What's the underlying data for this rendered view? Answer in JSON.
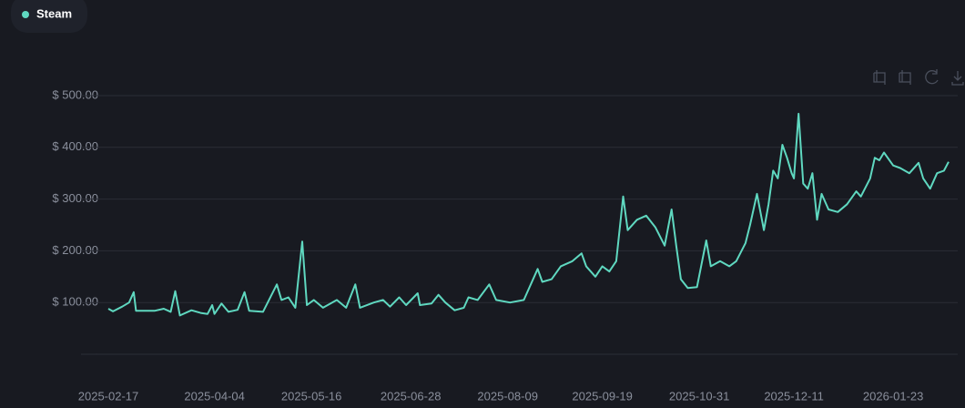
{
  "chart_data": {
    "type": "line",
    "x": [
      "2025-02-17",
      "2025-02-19",
      "2025-02-23",
      "2025-02-26",
      "2025-02-28",
      "2025-03-01",
      "2025-03-09",
      "2025-03-13",
      "2025-03-16",
      "2025-03-18",
      "2025-03-20",
      "2025-03-25",
      "2025-03-29",
      "2025-04-01",
      "2025-04-03",
      "2025-04-04",
      "2025-04-07",
      "2025-04-10",
      "2025-04-14",
      "2025-04-17",
      "2025-04-19",
      "2025-04-25",
      "2025-05-01",
      "2025-05-03",
      "2025-05-06",
      "2025-05-09",
      "2025-05-12",
      "2025-05-14",
      "2025-05-17",
      "2025-05-21",
      "2025-05-27",
      "2025-05-31",
      "2025-06-04",
      "2025-06-06",
      "2025-06-12",
      "2025-06-16",
      "2025-06-19",
      "2025-06-23",
      "2025-06-26",
      "2025-07-01",
      "2025-07-02",
      "2025-07-07",
      "2025-07-10",
      "2025-07-13",
      "2025-07-17",
      "2025-07-21",
      "2025-07-23",
      "2025-07-27",
      "2025-08-01",
      "2025-08-04",
      "2025-08-10",
      "2025-08-16",
      "2025-08-22",
      "2025-08-24",
      "2025-08-28",
      "2025-09-01",
      "2025-09-06",
      "2025-09-10",
      "2025-09-12",
      "2025-09-16",
      "2025-09-19",
      "2025-09-22",
      "2025-09-25",
      "2025-09-28",
      "2025-09-30",
      "2025-10-04",
      "2025-10-08",
      "2025-10-12",
      "2025-10-16",
      "2025-10-19",
      "2025-10-21",
      "2025-10-23",
      "2025-10-26",
      "2025-10-30",
      "2025-11-01",
      "2025-11-03",
      "2025-11-05",
      "2025-11-09",
      "2025-11-13",
      "2025-11-16",
      "2025-11-20",
      "2025-11-22",
      "2025-11-25",
      "2025-11-28",
      "2025-11-30",
      "2025-12-02",
      "2025-12-04",
      "2025-12-06",
      "2025-12-08",
      "2025-12-10",
      "2025-12-11",
      "2025-12-13",
      "2025-12-15",
      "2025-12-17",
      "2025-12-19",
      "2025-12-21",
      "2025-12-23",
      "2025-12-26",
      "2025-12-30",
      "2026-01-03",
      "2026-01-07",
      "2026-01-09",
      "2026-01-13",
      "2026-01-15",
      "2026-01-17",
      "2026-01-19",
      "2026-01-23",
      "2026-01-26",
      "2026-01-30",
      "2026-02-03",
      "2026-02-05",
      "2026-02-08",
      "2026-02-11",
      "2026-02-14",
      "2026-02-16"
    ],
    "series": [
      {
        "name": "Steam",
        "color": "#5fd8c0",
        "values": [
          88,
          83,
          92,
          100,
          120,
          84,
          84,
          88,
          82,
          122,
          75,
          85,
          80,
          78,
          95,
          78,
          98,
          82,
          86,
          120,
          84,
          82,
          135,
          105,
          110,
          90,
          218,
          95,
          105,
          90,
          105,
          90,
          135,
          90,
          100,
          105,
          92,
          110,
          95,
          118,
          95,
          98,
          115,
          100,
          85,
          90,
          110,
          105,
          135,
          105,
          100,
          105,
          165,
          140,
          145,
          170,
          180,
          195,
          170,
          150,
          170,
          160,
          180,
          305,
          240,
          260,
          268,
          245,
          210,
          280,
          210,
          145,
          128,
          130,
          175,
          220,
          170,
          180,
          170,
          180,
          215,
          250,
          310,
          240,
          290,
          355,
          340,
          405,
          380,
          350,
          340,
          465,
          330,
          320,
          350,
          260,
          310,
          280,
          275,
          290,
          315,
          305,
          340,
          380,
          375,
          390,
          365,
          360,
          350,
          370,
          340,
          320,
          350,
          355,
          372
        ]
      }
    ],
    "xlim": [
      "2025-02-17",
      "2026-02-16"
    ],
    "xticks": [
      "2025-02-17",
      "2025-04-04",
      "2025-05-16",
      "2025-06-28",
      "2025-08-09",
      "2025-09-19",
      "2025-10-31",
      "2025-12-11",
      "2026-01-23"
    ],
    "ylim": [
      0,
      500
    ],
    "yticks": [
      {
        "value": 0,
        "label": "-"
      },
      {
        "value": 100,
        "label": "$ 100.00"
      },
      {
        "value": 200,
        "label": "$ 200.00"
      },
      {
        "value": 300,
        "label": "$ 300.00"
      },
      {
        "value": 400,
        "label": "$ 400.00"
      },
      {
        "value": 500,
        "label": "$ 500.00"
      }
    ],
    "grid": true
  }
}
